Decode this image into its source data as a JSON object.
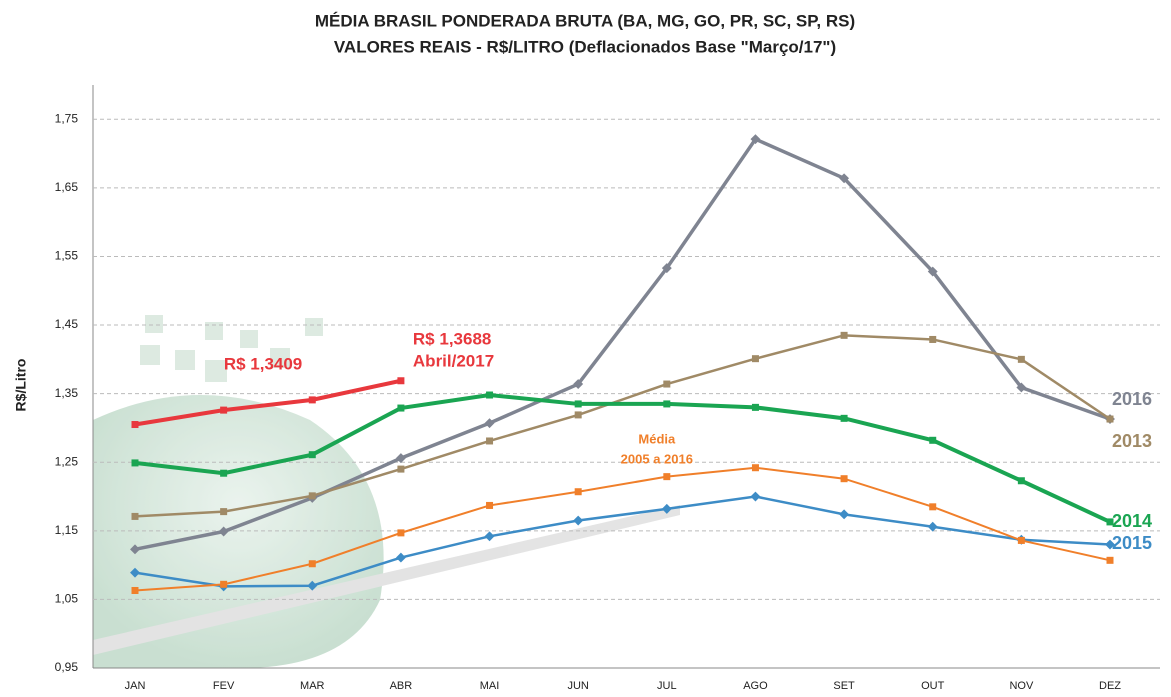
{
  "chart_data": {
    "type": "line",
    "title": "MÉDIA BRASIL PONDERADA BRUTA (BA, MG, GO, PR, SC, SP, RS)",
    "subtitle": "VALORES REAIS - R$/LITRO (Deflacionados Base \"Março/17\")",
    "y_label": "R$/Litro",
    "categories": [
      "JAN",
      "FEV",
      "MAR",
      "ABR",
      "MAI",
      "JUN",
      "JUL",
      "AGO",
      "SET",
      "OUT",
      "NOV",
      "DEZ"
    ],
    "series": [
      {
        "name": "2016",
        "color": "#7f8491",
        "values": [
          1.123,
          1.149,
          1.198,
          1.256,
          1.307,
          1.364,
          1.533,
          1.721,
          1.664,
          1.528,
          1.359,
          1.313
        ]
      },
      {
        "name": "2013",
        "color": "#a08a66",
        "values": [
          1.171,
          1.178,
          1.201,
          1.24,
          1.281,
          1.319,
          1.364,
          1.401,
          1.435,
          1.429,
          1.4,
          1.313
        ]
      },
      {
        "name": "2014",
        "color": "#1aa552",
        "values": [
          1.249,
          1.234,
          1.261,
          1.329,
          1.348,
          1.335,
          1.335,
          1.33,
          1.314,
          1.282,
          1.223,
          1.163
        ]
      },
      {
        "name": "2015",
        "color": "#3d8cc6",
        "values": [
          1.089,
          1.069,
          1.07,
          1.111,
          1.142,
          1.165,
          1.182,
          1.2,
          1.174,
          1.156,
          1.137,
          1.13
        ]
      },
      {
        "color": "#f07f2a",
        "values": [
          1.063,
          1.072,
          1.102,
          1.147,
          1.187,
          1.207,
          1.229,
          1.242,
          1.226,
          1.185,
          1.136,
          1.107
        ]
      },
      {
        "color": "#e8383d",
        "values": [
          1.305,
          1.326,
          1.3409,
          1.3688,
          null,
          null,
          null,
          null,
          null,
          null,
          null,
          null
        ],
        "value_labels": [
          null,
          null,
          "R$ 1,3409",
          "R$ 1,3688",
          null,
          null,
          null,
          null,
          null,
          null,
          null,
          null
        ]
      }
    ],
    "annotations": [
      "Abril/2017",
      "Média",
      "2005 a 2016"
    ],
    "ylim": [
      0.95,
      1.8
    ],
    "yticks": [
      {
        "value": 0.95,
        "label": "0,95"
      },
      {
        "value": 1.05,
        "label": "1,05"
      },
      {
        "value": 1.15,
        "label": "1,15"
      },
      {
        "value": 1.25,
        "label": "1,25"
      },
      {
        "value": 1.35,
        "label": "1,35"
      },
      {
        "value": 1.45,
        "label": "1,45"
      },
      {
        "value": 1.55,
        "label": "1,55"
      },
      {
        "value": 1.65,
        "label": "1,65"
      },
      {
        "value": 1.75,
        "label": "1,75"
      }
    ],
    "grid": true
  }
}
